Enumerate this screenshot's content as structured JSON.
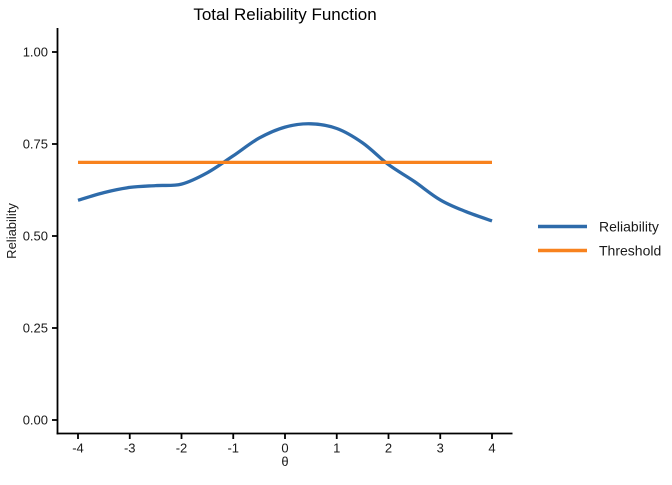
{
  "chart": {
    "background": "#ffffff",
    "axis_color": "#000000",
    "accent_blue": "#2E6BAA",
    "accent_orange": "#F8821E"
  },
  "chart_data": {
    "type": "line",
    "title": "Total Reliability Function",
    "xlabel": "θ",
    "ylabel": "Reliability",
    "xlim": [
      -4,
      4
    ],
    "ylim": [
      0,
      1
    ],
    "grid": false,
    "legend_position": "right",
    "x_ticks": [
      {
        "v": -4,
        "label": "-4"
      },
      {
        "v": -3,
        "label": "-3"
      },
      {
        "v": -2,
        "label": "-2"
      },
      {
        "v": -1,
        "label": "-1"
      },
      {
        "v": 0,
        "label": "0"
      },
      {
        "v": 1,
        "label": "1"
      },
      {
        "v": 2,
        "label": "2"
      },
      {
        "v": 3,
        "label": "3"
      },
      {
        "v": 4,
        "label": "4"
      }
    ],
    "y_ticks": [
      {
        "v": 0,
        "label": "0.00"
      },
      {
        "v": 0.25,
        "label": "0.25"
      },
      {
        "v": 0.5,
        "label": "0.50"
      },
      {
        "v": 0.75,
        "label": "0.75"
      },
      {
        "v": 1,
        "label": "1.00"
      }
    ],
    "series": [
      {
        "name": "Reliability",
        "color": "#2E6BAA",
        "style": "smooth",
        "x": [
          -4,
          -3.5,
          -3,
          -2.5,
          -2,
          -1.5,
          -1,
          -0.5,
          0,
          0.5,
          1,
          1.5,
          2,
          2.5,
          3,
          3.5,
          4
        ],
        "y": [
          0.597,
          0.618,
          0.632,
          0.637,
          0.641,
          0.672,
          0.718,
          0.766,
          0.796,
          0.805,
          0.792,
          0.753,
          0.694,
          0.648,
          0.598,
          0.566,
          0.541
        ]
      },
      {
        "name": "Threshold",
        "color": "#F8821E",
        "style": "straight",
        "x": [
          -4,
          4
        ],
        "y": [
          0.7,
          0.7
        ]
      }
    ]
  }
}
